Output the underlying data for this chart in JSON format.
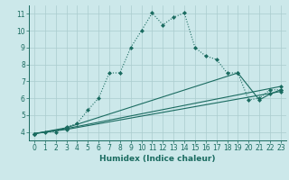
{
  "bg_color": "#cce8ea",
  "grid_color": "#aaccce",
  "line_color": "#1a6b60",
  "xlabel": "Humidex (Indice chaleur)",
  "xlim": [
    -0.5,
    23.5
  ],
  "ylim": [
    3.5,
    11.5
  ],
  "yticks": [
    4,
    5,
    6,
    7,
    8,
    9,
    10,
    11
  ],
  "xticks": [
    0,
    1,
    2,
    3,
    4,
    5,
    6,
    7,
    8,
    9,
    10,
    11,
    12,
    13,
    14,
    15,
    16,
    17,
    18,
    19,
    20,
    21,
    22,
    23
  ],
  "line1_x": [
    0,
    1,
    2,
    3,
    4,
    5,
    6,
    7,
    8,
    9,
    10,
    11,
    12,
    13,
    14,
    15,
    16,
    17,
    18,
    19,
    20,
    21,
    22,
    23
  ],
  "line1_y": [
    3.9,
    4.0,
    4.0,
    4.3,
    4.5,
    5.3,
    6.0,
    7.5,
    7.5,
    9.0,
    10.0,
    11.05,
    10.35,
    10.8,
    11.05,
    9.0,
    8.5,
    8.3,
    7.5,
    7.5,
    5.9,
    6.0,
    6.5,
    6.5
  ],
  "line2_x": [
    0,
    3,
    19,
    21,
    22,
    23
  ],
  "line2_y": [
    3.9,
    4.25,
    7.5,
    5.9,
    6.25,
    6.5
  ],
  "line3_x": [
    0,
    3,
    23
  ],
  "line3_y": [
    3.9,
    4.2,
    6.7
  ],
  "line4_x": [
    0,
    3,
    23
  ],
  "line4_y": [
    3.9,
    4.15,
    6.4
  ]
}
